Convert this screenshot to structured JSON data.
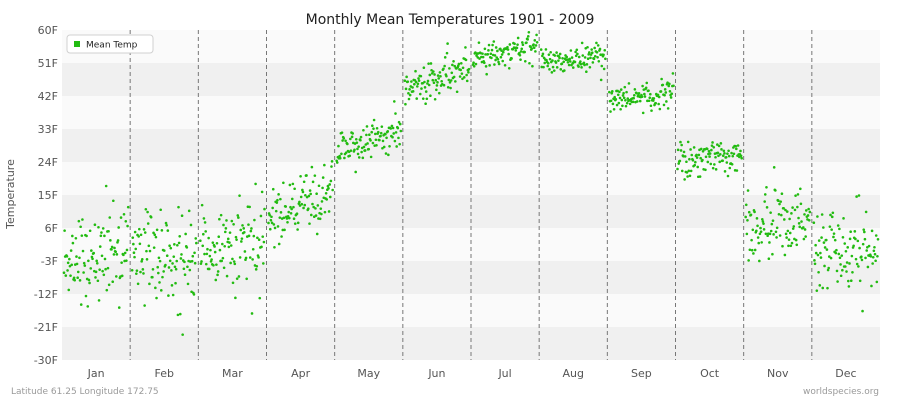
{
  "chart_data": {
    "type": "scatter",
    "title": "Monthly Mean Temperatures 1901 - 2009",
    "ylabel": "Temperature",
    "xlabel": "",
    "ylim": [
      -30,
      60
    ],
    "yticks": [
      -30,
      -21,
      -12,
      -3,
      6,
      15,
      24,
      33,
      42,
      51,
      60
    ],
    "ytick_labels": [
      "-30F",
      "-21F",
      "-12F",
      "-3F",
      "6F",
      "15F",
      "24F",
      "33F",
      "42F",
      "51F",
      "60F"
    ],
    "categories": [
      "Jan",
      "Feb",
      "Mar",
      "Apr",
      "May",
      "Jun",
      "Jul",
      "Aug",
      "Sep",
      "Oct",
      "Nov",
      "Dec"
    ],
    "grid": "horizontal bands, dashed vertical month separators",
    "legend_position": "top-left",
    "series": [
      {
        "name": "Mean Temp",
        "color": "#22bb11",
        "points_per_month": 109,
        "month_mean": [
          -1,
          -2,
          1,
          12,
          30,
          47,
          54,
          52,
          42,
          25,
          7,
          -1
        ],
        "month_spread": [
          6.5,
          6,
          5.5,
          4,
          3,
          2.5,
          2,
          1.8,
          1.8,
          2.5,
          5,
          6
        ],
        "month_trend": [
          4,
          -1,
          5,
          7,
          6,
          5,
          4,
          1,
          2,
          2,
          2,
          1
        ]
      }
    ]
  },
  "footer": {
    "left": "Latitude 61.25 Longitude 172.75",
    "right": "worldspecies.org"
  }
}
